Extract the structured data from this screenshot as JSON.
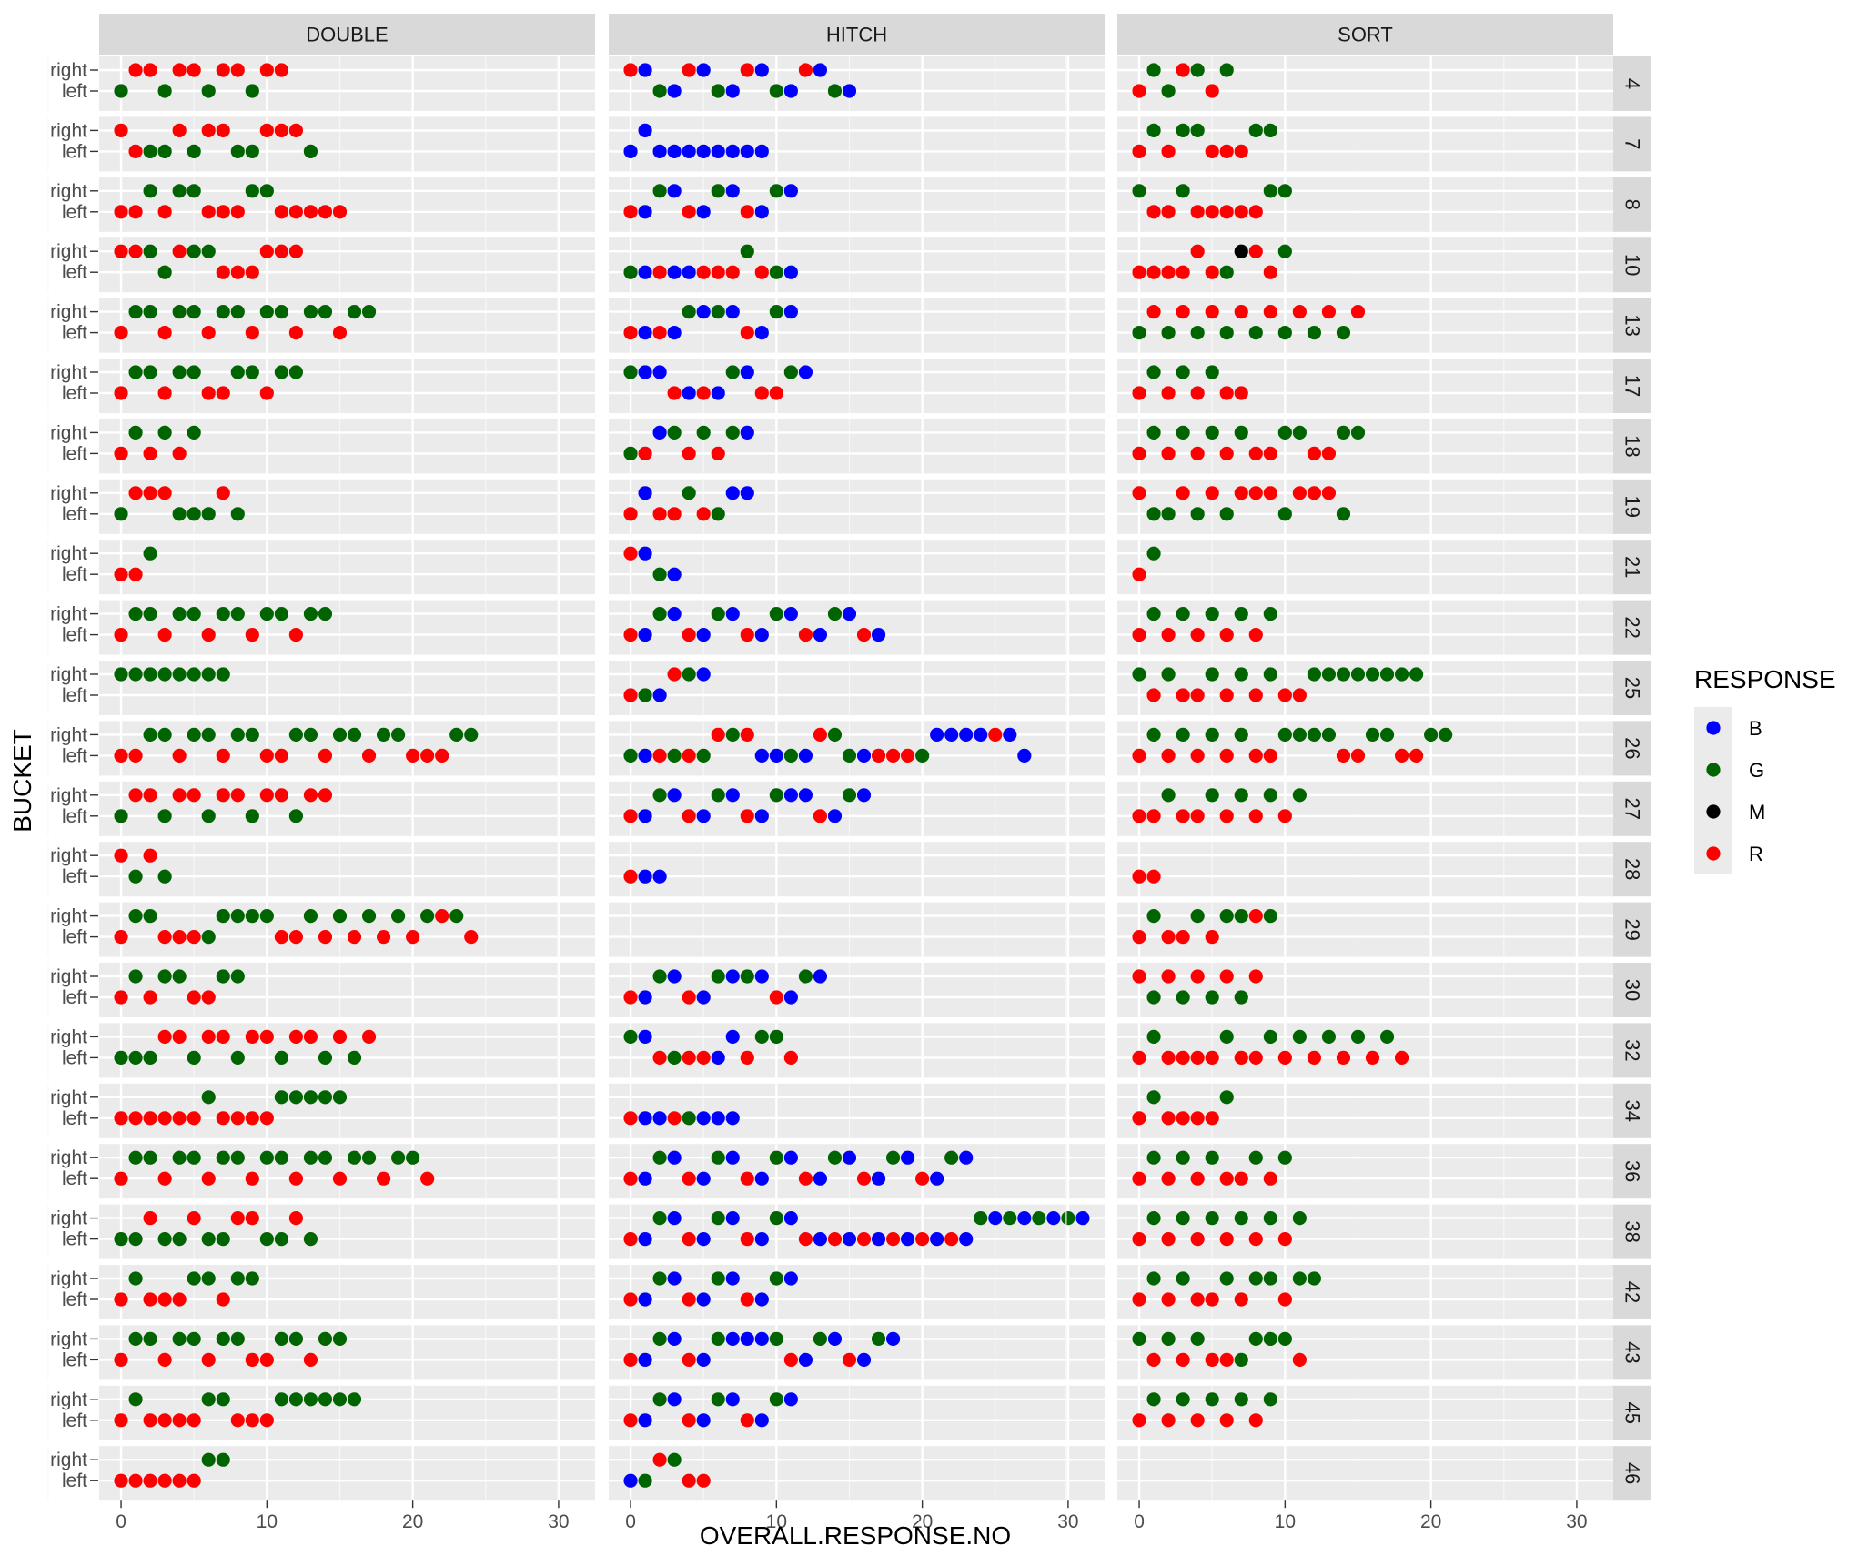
{
  "chart_data": {
    "type": "scatter",
    "xlabel": "OVERALL.RESPONSE.NO",
    "ylabel": "BUCKET",
    "xlim": [
      -1.5,
      32.5
    ],
    "x_ticks": [
      0,
      10,
      20,
      30
    ],
    "y_levels": [
      "left",
      "right"
    ],
    "columns": [
      "DOUBLE",
      "HITCH",
      "SORT"
    ],
    "rows": [
      "4",
      "7",
      "8",
      "10",
      "13",
      "17",
      "18",
      "19",
      "21",
      "22",
      "25",
      "26",
      "27",
      "28",
      "29",
      "30",
      "32",
      "34",
      "36",
      "38",
      "42",
      "43",
      "45",
      "46"
    ],
    "legend": {
      "title": "RESPONSE",
      "placement": "right",
      "entries": [
        {
          "key": "B",
          "label": "B",
          "color": "#0000FF"
        },
        {
          "key": "G",
          "label": "G",
          "color": "#006400"
        },
        {
          "key": "M",
          "label": "M",
          "color": "#000000"
        },
        {
          "key": "R",
          "label": "R",
          "color": "#FF0000"
        }
      ]
    },
    "grid": true,
    "encoding": "Each panel: \"right\" and \"left\" are lists of points given as a string of x:response pairs",
    "panels": {
      "4": {
        "DOUBLE": {
          "right": "1R 2R 4R 5R 7R 8R 10R 11R",
          "left": "0G 3G 6G 9G"
        },
        "HITCH": {
          "right": "0R 1B 4R 5B 8R 9B 12R 13B",
          "left": "2G 3B 6G 7B 10G 11B 14G 15B"
        },
        "SORT": {
          "right": "1G 3R 4G 6G",
          "left": "0R 2G 5R"
        }
      },
      "7": {
        "DOUBLE": {
          "right": "0R 4R 6R 7R 10R 11R 12R",
          "left": "1R 2G 3G 5G 8G 9G 13G"
        },
        "HITCH": {
          "right": "1B",
          "left": "0B 2B 3B 4B 5B 6B 7B 8B 9B"
        },
        "SORT": {
          "right": "1G 3G 4G 8G 9G",
          "left": "0R 2R 5R 6R 7R"
        }
      },
      "8": {
        "DOUBLE": {
          "right": "2G 4G 5G 9G 10G",
          "left": "0R 1R 3R 6R 7R 8R 11R 12R 13R 14R 15R"
        },
        "HITCH": {
          "right": "2G 3B 6G 7B 10G 11B",
          "left": "0R 1B 4R 5B 8R 9B"
        },
        "SORT": {
          "right": "0G 3G 9G 10G",
          "left": "1R 2R 4R 5R 6R 7R 8R"
        }
      },
      "10": {
        "DOUBLE": {
          "right": "0R 1R 2G 4R 5G 6G 10R 11R 12R",
          "left": "3G 7R 8R 9R"
        },
        "HITCH": {
          "right": "8G",
          "left": "0G 1B 2R 3B 4B 5R 6R 7R 9R 10G 11B"
        },
        "SORT": {
          "right": "4R 7M 8R 10G",
          "left": "0R 1R 2R 3R 5R 6G 9R"
        }
      },
      "13": {
        "DOUBLE": {
          "right": "1G 2G 4G 5G 7G 8G 10G 11G 13G 14G 16G 17G",
          "left": "0R 3R 6R 9R 12R 15R"
        },
        "HITCH": {
          "right": "4G 5B 6G 7B 10G 11B",
          "left": "0R 1B 2R 3B 8R 9B"
        },
        "SORT": {
          "right": "1R 3R 5R 7R 9R 11R 13R 15R",
          "left": "0G 2G 4G 6G 8G 10G 12G 14G"
        }
      },
      "17": {
        "DOUBLE": {
          "right": "1G 2G 4G 5G 8G 9G 11G 12G",
          "left": "0R 3R 6R 7R 10R"
        },
        "HITCH": {
          "right": "0G 1B 2B 7G 8B 11G 12B",
          "left": "3R 4B 5R 6B 9R 10R"
        },
        "SORT": {
          "right": "1G 3G 5G",
          "left": "0R 2R 4R 6R 7R"
        }
      },
      "18": {
        "DOUBLE": {
          "right": "1G 3G 5G",
          "left": "0R 2R 4R"
        },
        "HITCH": {
          "right": "2B 3G 5G 7G 8B",
          "left": "0G 1R 4R 6R"
        },
        "SORT": {
          "right": "1G 3G 5G 7G 10G 11G 14G 15G",
          "left": "0R 2R 4R 6R 8R 9R 12R 13R"
        }
      },
      "19": {
        "DOUBLE": {
          "right": "1R 2R 3R 7R",
          "left": "0G 4G 5G 6G 8G"
        },
        "HITCH": {
          "right": "1B 4G 7B 8B",
          "left": "0R 2R 3R 5R 6G"
        },
        "SORT": {
          "right": "0R 3R 5R 7R 8R 9R 11R 12R 13R",
          "left": "1G 2G 4G 6G 10G 14G"
        }
      },
      "21": {
        "DOUBLE": {
          "right": "2G",
          "left": "0R 1R"
        },
        "HITCH": {
          "right": "0R 1B",
          "left": "2G 3B"
        },
        "SORT": {
          "right": "1G",
          "left": "0R"
        }
      },
      "22": {
        "DOUBLE": {
          "right": "1G 2G 4G 5G 7G 8G 10G 11G 13G 14G",
          "left": "0R 3R 6R 9R 12R"
        },
        "HITCH": {
          "right": "2G 3B 6G 7B 10G 11B 14G 15B",
          "left": "0R 1B 4R 5B 8R 9B 12R 13B 16R 17B"
        },
        "SORT": {
          "right": "1G 3G 5G 7G 9G",
          "left": "0R 2R 4R 6R 8R"
        }
      },
      "25": {
        "DOUBLE": {
          "right": "0G 1G 2G 3G 4G 5G 6G 7G",
          "left": ""
        },
        "HITCH": {
          "right": "3R 4G 5B",
          "left": "0R 1G 2B"
        },
        "SORT": {
          "right": "0G 2G 5G 7G 9G 12G 13G 14G 15G 16G 17G 18G 19G",
          "left": "1R 3R 4R 6R 8R 10R 11R"
        }
      },
      "26": {
        "DOUBLE": {
          "right": "2G 3G 5G 6G 8G 9G 12G 13G 15G 16G 18G 19G 23G 24G",
          "left": "0R 1R 4R 7R 10R 11R 14R 17R 20R 21R 22R"
        },
        "HITCH": {
          "right": "6R 7G 8R 13R 14G 21B 22B 23B 24B 25R 26B",
          "left": "0G 1B 2R 3G 4R 5G 9B 10B 11G 12B 15G 16B 17R 18R 19R 20G 27B"
        },
        "SORT": {
          "right": "1G 3G 5G 7G 10G 11G 12G 13G 16G 17G 20G 21G",
          "left": "0R 2R 4R 6R 8R 9R 14R 15R 18R 19R"
        }
      },
      "27": {
        "DOUBLE": {
          "right": "1R 2R 4R 5R 7R 8R 10R 11R 13R 14R",
          "left": "0G 3G 6G 9G 12G"
        },
        "HITCH": {
          "right": "2G 3B 6G 7B 10G 11B 12B 15G 16B",
          "left": "0R 1B 4R 5B 8R 9B 13R 14B"
        },
        "SORT": {
          "right": "2G 5G 7G 9G 11G",
          "left": "0R 1R 3R 4R 6R 8R 10R"
        }
      },
      "28": {
        "DOUBLE": {
          "right": "0R 2R",
          "left": "1G 3G"
        },
        "HITCH": {
          "right": "",
          "left": "0R 1B 2B"
        },
        "SORT": {
          "right": "",
          "left": "0R 1R"
        }
      },
      "29": {
        "DOUBLE": {
          "right": "1G 2G 7G 8G 9G 10G 13G 15G 17G 19G 21G 22R 23G",
          "left": "0R 3R 4R 5R 6G 11R 12R 14R 16R 18R 20R 24R"
        },
        "HITCH": {
          "right": "",
          "left": ""
        },
        "SORT": {
          "right": "1G 4G 6G 7G 8R 9G",
          "left": "0R 2R 3R 5R"
        }
      },
      "30": {
        "DOUBLE": {
          "right": "1G 3G 4G 7G 8G",
          "left": "0R 2R 5R 6R"
        },
        "HITCH": {
          "right": "2G 3B 6G 7B 8G 9B 12G 13B",
          "left": "0R 1B 4R 5B 10R 11B"
        },
        "SORT": {
          "right": "0R 2R 4R 6R 8R",
          "left": "1G 3G 5G 7G"
        }
      },
      "32": {
        "DOUBLE": {
          "right": "3R 4R 6R 7R 9R 10R 12R 13R 15R 17R",
          "left": "0G 1G 2G 5G 8G 11G 14G 16G"
        },
        "HITCH": {
          "right": "0G 1B 7B 9G 10G",
          "left": "2R 3G 4R 5R 6B 8R 11R"
        },
        "SORT": {
          "right": "1G 6G 9G 11G 13G 15G 17G",
          "left": "0R 2R 3R 4R 5R 7R 8R 10R 12R 14R 16R 18R"
        }
      },
      "34": {
        "DOUBLE": {
          "right": "6G 11G 12G 13G 14G 15G",
          "left": "0R 1R 2R 3R 4R 5R 7R 8R 9R 10R"
        },
        "HITCH": {
          "right": "",
          "left": "0R 1B 2B 3R 4G 5B 6B 7B"
        },
        "SORT": {
          "right": "1G 6G",
          "left": "0R 2R 3R 4R 5R"
        }
      },
      "36": {
        "DOUBLE": {
          "right": "1G 2G 4G 5G 7G 8G 10G 11G 13G 14G 16G 17G 19G 20G",
          "left": "0R 3R 6R 9R 12R 15R 18R 21R"
        },
        "HITCH": {
          "right": "2G 3B 6G 7B 10G 11B 14G 15B 18G 19B 22G 23B",
          "left": "0R 1B 4R 5B 8R 9B 12R 13B 16R 17B 20R 21B"
        },
        "SORT": {
          "right": "1G 3G 5G 8G 10G",
          "left": "0R 2R 4R 6R 7R 9R"
        }
      },
      "38": {
        "DOUBLE": {
          "right": "2R 5R 8R 9R 12R",
          "left": "0G 1G 3G 4G 6G 7G 10G 11G 13G"
        },
        "HITCH": {
          "right": "2G 3B 6G 7B 10G 11B 24G 25B 26G 27B 28G 29B 30G 31B",
          "left": "0R 1B 4R 5B 8R 9B 12R 13B 14R 15B 16R 17B 18R 19B 20R 21B 22R 23B"
        },
        "SORT": {
          "right": "1G 3G 5G 7G 9G 11G",
          "left": "0R 2R 4R 6R 8R 10R"
        }
      },
      "42": {
        "DOUBLE": {
          "right": "1G 5G 6G 8G 9G",
          "left": "0R 2R 3R 4R 7R"
        },
        "HITCH": {
          "right": "2G 3B 6G 7B 10G 11B",
          "left": "0R 1B 4R 5B 8R 9B"
        },
        "SORT": {
          "right": "1G 3G 6G 8G 9G 11G 12G",
          "left": "0R 2R 4R 5R 7R 10R"
        }
      },
      "43": {
        "DOUBLE": {
          "right": "1G 2G 4G 5G 7G 8G 11G 12G 14G 15G",
          "left": "0R 3R 6R 9R 10R 13R"
        },
        "HITCH": {
          "right": "2G 3B 6G 7B 8B 9B 10G 13G 14B 17G 18B",
          "left": "0R 1B 4R 5B 11R 12B 15R 16B"
        },
        "SORT": {
          "right": "0G 2G 4G 8G 9G 10G",
          "left": "1R 3R 5R 6R 7G 11R"
        }
      },
      "45": {
        "DOUBLE": {
          "right": "1G 6G 7G 11G 12G 13G 14G 15G 16G",
          "left": "0R 2R 3R 4R 5R 8R 9R 10R"
        },
        "HITCH": {
          "right": "2G 3B 6G 7B 10G 11B",
          "left": "0R 1B 4R 5B 8R 9B"
        },
        "SORT": {
          "right": "1G 3G 5G 7G 9G",
          "left": "0R 2R 4R 6R 8R"
        }
      },
      "46": {
        "DOUBLE": {
          "right": "6G 7G",
          "left": "0R 1R 2R 3R 4R 5R"
        },
        "HITCH": {
          "right": "2R 3G",
          "left": "0B 1G 4R 5R"
        },
        "SORT": {
          "right": "",
          "left": ""
        }
      }
    }
  }
}
